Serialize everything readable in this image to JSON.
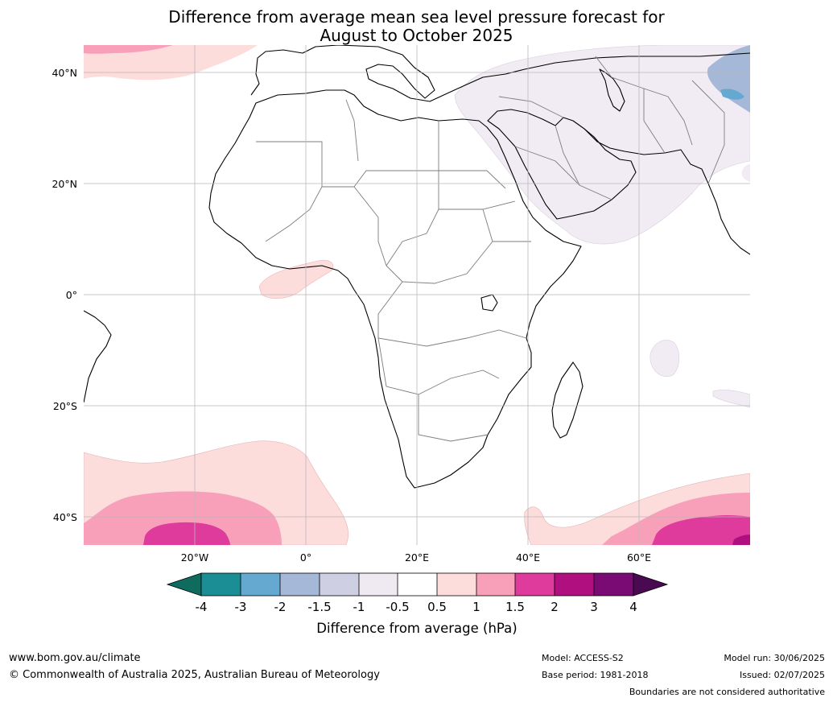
{
  "title": {
    "line1": "Difference from average mean sea level pressure forecast for",
    "line2": "August to October 2025"
  },
  "map": {
    "lat_labels": [
      "40°N",
      "20°N",
      "0°",
      "20°S",
      "40°S"
    ],
    "lon_labels": [
      "20°W",
      "0°",
      "20°E",
      "40°E",
      "60°E"
    ],
    "colors": {
      "ocean": "#ffffff",
      "land": "#ffffff",
      "gridline": "#b9b9b9",
      "coastline": "#000000",
      "border": "#7d7d7d"
    }
  },
  "colorbar": {
    "title": "Difference from average (hPa)",
    "tick_labels": [
      "-4",
      "-3",
      "-2",
      "-1.5",
      "-1",
      "-0.5",
      "0.5",
      "1",
      "1.5",
      "2",
      "3",
      "4"
    ],
    "extend_low_color": "#0e6b5e",
    "extend_high_color": "#4a0a52",
    "bin_colors": [
      "#1b8e95",
      "#65a9d0",
      "#a6b8d7",
      "#cfcfe3",
      "#efe9f2",
      "#ffffff",
      "#fddcdc",
      "#f8a0ba",
      "#de3b9c",
      "#b00f80",
      "#7a0a74"
    ]
  },
  "footer": {
    "website": "www.bom.gov.au/climate",
    "copyright": "© Commonwealth of Australia 2025, Australian Bureau of Meteorology",
    "model": "Model: ACCESS-S2",
    "base_period": "Base period: 1981-2018",
    "model_run": "Model run: 30/06/2025",
    "issued": "Issued: 02/07/2025",
    "disclaimer": "Boundaries are not considered authoritative"
  }
}
